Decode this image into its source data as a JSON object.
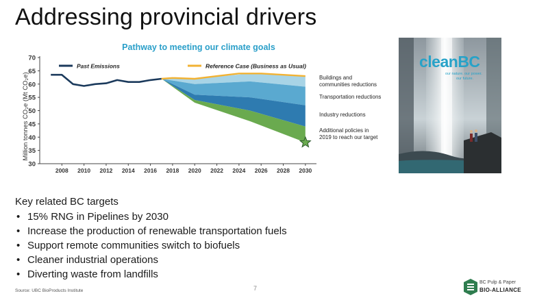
{
  "slide": {
    "title": "Addressing provincial drivers",
    "page_number": "7",
    "source": "Source: UBC BioProducts Institute"
  },
  "chart_data": {
    "type": "area",
    "title": "Pathway to meeting our climate goals",
    "ylabel": "Million tonnes CO₂e (Mt CO₂e)",
    "xlabel": "",
    "xlim": [
      2006,
      2031
    ],
    "ylim": [
      30,
      70
    ],
    "x_ticks": [
      "2008",
      "2010",
      "2012",
      "2014",
      "2016",
      "2018",
      "2020",
      "2022",
      "2024",
      "2026",
      "2028",
      "2030"
    ],
    "y_ticks": [
      "30",
      "35",
      "40",
      "45",
      "50",
      "55",
      "60",
      "65",
      "70"
    ],
    "grid": false,
    "legend": [
      {
        "name": "Past Emissions",
        "color": "#1b3a5c"
      },
      {
        "name": "Reference Case (Business as Usual)",
        "color": "#f2b233"
      }
    ],
    "series": [
      {
        "name": "Past Emissions",
        "color": "#1b3a5c",
        "points": [
          [
            2007,
            63.5
          ],
          [
            2008,
            63.5
          ],
          [
            2009,
            60.0
          ],
          [
            2010,
            59.3
          ],
          [
            2011,
            60.0
          ],
          [
            2012,
            60.3
          ],
          [
            2013,
            61.5
          ],
          [
            2014,
            60.8
          ],
          [
            2015,
            60.8
          ],
          [
            2016,
            61.5
          ],
          [
            2017,
            62.0
          ]
        ]
      },
      {
        "name": "Reference Case (Business as Usual)",
        "color": "#f2b233",
        "points": [
          [
            2017,
            62.0
          ],
          [
            2018,
            62.3
          ],
          [
            2020,
            62.0
          ],
          [
            2022,
            63.0
          ],
          [
            2024,
            64.0
          ],
          [
            2026,
            64.0
          ],
          [
            2028,
            63.5
          ],
          [
            2030,
            63.0
          ]
        ]
      }
    ],
    "reduction_bands": [
      {
        "label": "Buildings and communities reductions",
        "color": "#a8d4e6",
        "upper": [
          62.0,
          62.0,
          64.0,
          63.0
        ],
        "lower": [
          62.0,
          60.0,
          61.0,
          59.0
        ]
      },
      {
        "label": "Transportation reductions",
        "color": "#5aa9d0",
        "upper": [
          62.0,
          60.0,
          61.0,
          59.0
        ],
        "lower": [
          62.0,
          56.0,
          55.0,
          52.0
        ]
      },
      {
        "label": "Industry reductions",
        "color": "#2e7bb0",
        "upper": [
          62.0,
          56.0,
          55.0,
          52.0
        ],
        "lower": [
          62.0,
          54.0,
          50.0,
          44.0
        ]
      },
      {
        "label": "Additional policies in 2019 to reach our target",
        "color": "#6aaa4f",
        "upper": [
          62.0,
          54.0,
          50.0,
          44.0
        ],
        "lower": [
          62.0,
          53.0,
          46.0,
          38.0
        ]
      }
    ],
    "band_x": [
      2017,
      2020,
      2025,
      2030
    ],
    "annotations": [
      {
        "text": "Buildings and communities reductions",
        "lines": [
          "Buildings and",
          "communities reductions"
        ]
      },
      {
        "text": "Transportation reductions",
        "lines": [
          "Transportation reductions"
        ]
      },
      {
        "text": "Industry reductions",
        "lines": [
          "Industry reductions"
        ]
      },
      {
        "text": "Additional policies in 2019 to reach our target",
        "lines": [
          "Additional policies in",
          "2019 to reach our target"
        ]
      }
    ],
    "target": {
      "x": 2030,
      "y": 38,
      "marker": "star",
      "color": "#6aaa4f"
    }
  },
  "cover": {
    "brand": "cleanBC",
    "tagline_line1": "our nature. our power.",
    "tagline_line2": "our future."
  },
  "targets": {
    "heading": "Key related BC targets",
    "items": [
      "15% RNG in Pipelines by 2030",
      "Increase the production of renewable transportation fuels",
      "Support remote communities switch to biofuels",
      "Cleaner industrial operations",
      "Diverting waste from landfills"
    ]
  },
  "logo": {
    "line1": "BC Pulp & Paper",
    "line2": "BIO-ALLIANCE",
    "color": "#2f7d4f"
  }
}
